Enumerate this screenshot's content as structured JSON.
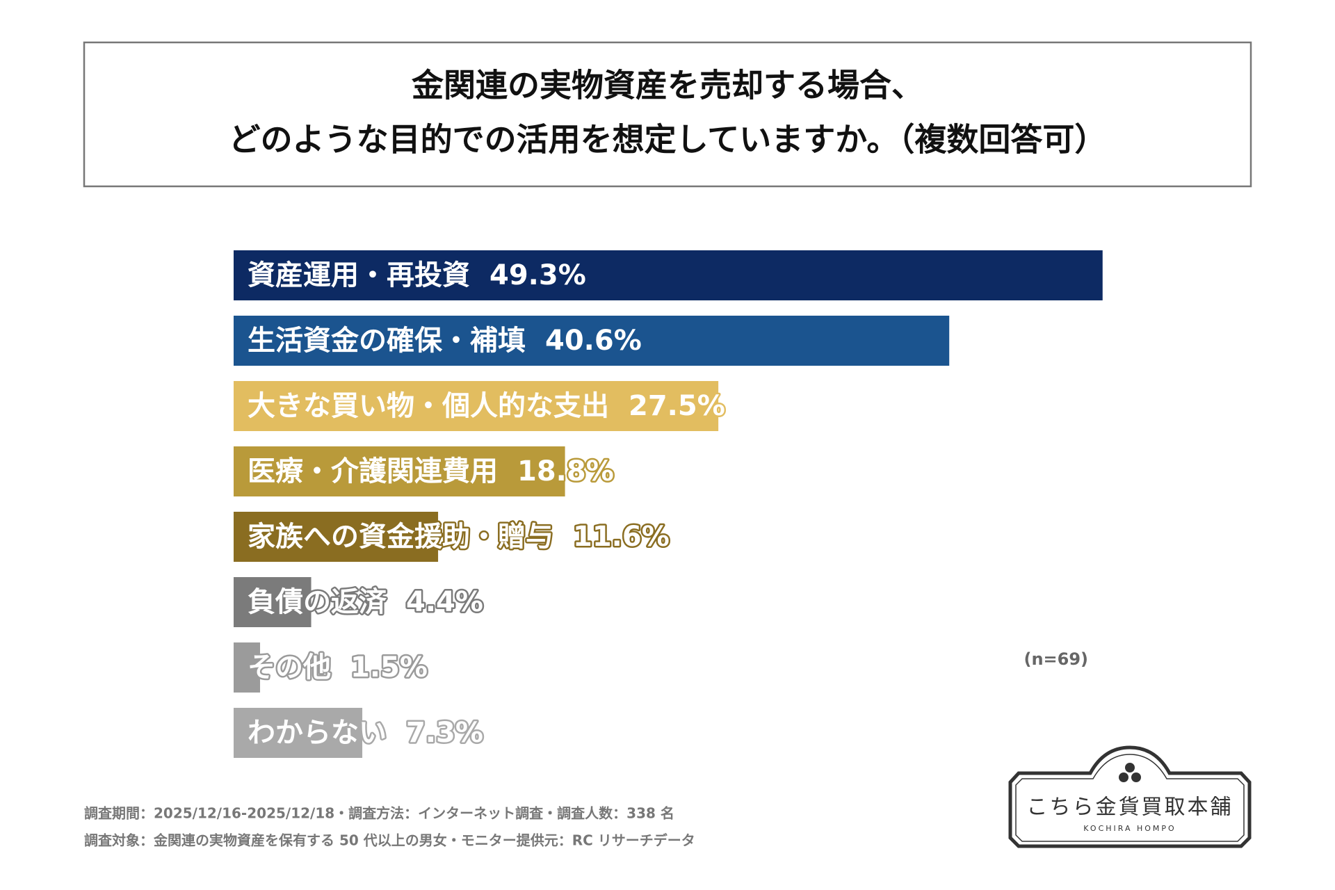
{
  "chart_data": {
    "type": "bar",
    "title": [
      "金関連の実物資産を売却する場合、",
      "どのような目的での活用を想定していますか。（複数回答可）"
    ],
    "categories": [
      "資産運用・再投資",
      "生活資金の確保・補填",
      "大きな買い物・個人的な支出",
      "医療・介護関連費用",
      "家族への資金援助・贈与",
      "負債の返済",
      "その他",
      "わからない"
    ],
    "values": [
      49.3,
      40.6,
      27.5,
      18.8,
      11.6,
      4.4,
      1.5,
      7.3
    ],
    "value_labels": [
      "49.3%",
      "40.6%",
      "27.5%",
      "18.8%",
      "11.6%",
      "4.4%",
      "1.5%",
      "7.3%"
    ],
    "colors": [
      "#0d2a63",
      "#1b548f",
      "#e2bd60",
      "#b99a3a",
      "#8a6d21",
      "#7b7b7b",
      "#9b9b9b",
      "#a9a9a9"
    ],
    "note": "(n=69)"
  },
  "footer": [
    "調査期間：2025/12/16-2025/12/18・調査方法：インターネット調査・調査人数：338 名",
    "調査対象：金関連の実物資産を保有する 50 代以上の男女・モニター提供元：RC リサーチデータ"
  ],
  "logo": {
    "name": "こちら金貨買取本舗",
    "romaji": "KOCHIRA HOMPO"
  }
}
